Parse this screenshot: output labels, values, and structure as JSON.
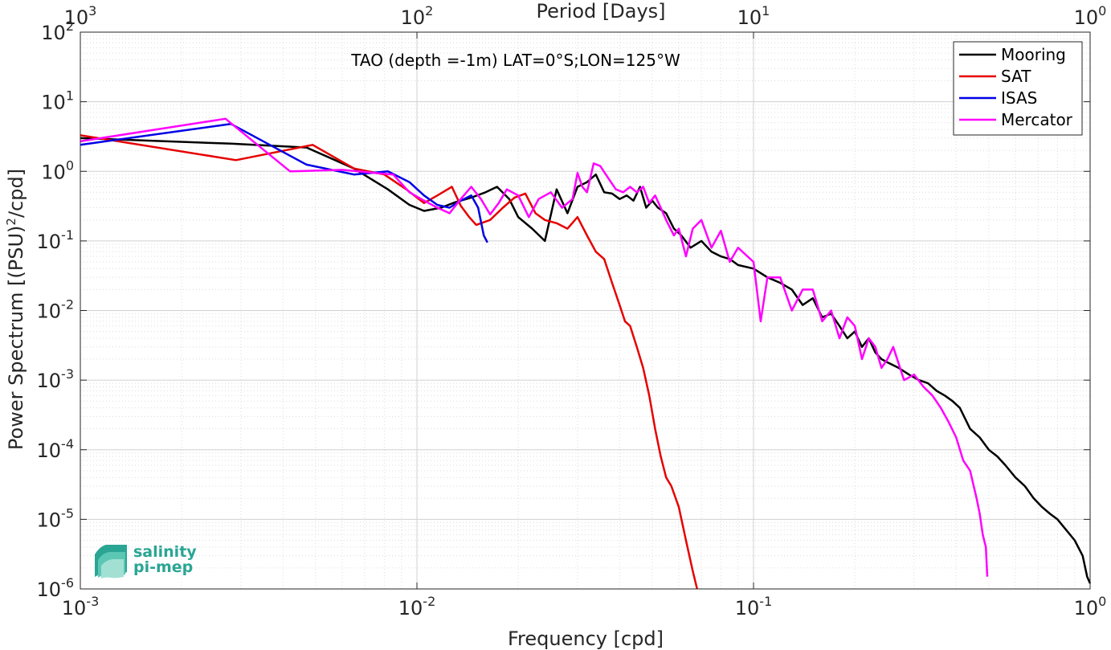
{
  "chart_data": {
    "type": "line",
    "title": "",
    "annotation": "TAO (depth =-1m) LAT=0°S;LON=125°W",
    "xlabel": "Frequency [cpd]",
    "ylabel": "Power Spectrum [(PSU)",
    "ylabel_sup": "2",
    "ylabel_end": "/cpd]",
    "top_xlabel": "Period [Days]",
    "xscale": "log",
    "yscale": "log",
    "xlim": [
      0.001,
      1
    ],
    "ylim": [
      1e-06,
      100
    ],
    "grid": true,
    "legend_position": "top-right",
    "x_ticks": [
      {
        "base": "10",
        "exp": "-3"
      },
      {
        "base": "10",
        "exp": "-2"
      },
      {
        "base": "10",
        "exp": "-1"
      },
      {
        "base": "10",
        "exp": "0"
      }
    ],
    "y_ticks": [
      {
        "base": "10",
        "exp": "-6"
      },
      {
        "base": "10",
        "exp": "-5"
      },
      {
        "base": "10",
        "exp": "-4"
      },
      {
        "base": "10",
        "exp": "-3"
      },
      {
        "base": "10",
        "exp": "-2"
      },
      {
        "base": "10",
        "exp": "-1"
      },
      {
        "base": "10",
        "exp": "0"
      },
      {
        "base": "10",
        "exp": "1"
      },
      {
        "base": "10",
        "exp": "2"
      }
    ],
    "top_ticks": [
      {
        "base": "10",
        "exp": "3"
      },
      {
        "base": "10",
        "exp": "2"
      },
      {
        "base": "10",
        "exp": "1"
      },
      {
        "base": "10",
        "exp": "0"
      }
    ],
    "series": [
      {
        "name": "Mooring",
        "color": "#000000",
        "points": [
          [
            0.001,
            3.0
          ],
          [
            0.0028,
            2.5
          ],
          [
            0.0047,
            2.2
          ],
          [
            0.0065,
            1.1
          ],
          [
            0.0082,
            0.55
          ],
          [
            0.0095,
            0.33
          ],
          [
            0.0105,
            0.27
          ],
          [
            0.0118,
            0.3
          ],
          [
            0.013,
            0.36
          ],
          [
            0.0145,
            0.42
          ],
          [
            0.016,
            0.5
          ],
          [
            0.0173,
            0.6
          ],
          [
            0.0188,
            0.4
          ],
          [
            0.02,
            0.22
          ],
          [
            0.022,
            0.15
          ],
          [
            0.024,
            0.1
          ],
          [
            0.026,
            0.55
          ],
          [
            0.028,
            0.25
          ],
          [
            0.03,
            0.6
          ],
          [
            0.032,
            0.7
          ],
          [
            0.034,
            0.9
          ],
          [
            0.036,
            0.5
          ],
          [
            0.038,
            0.48
          ],
          [
            0.04,
            0.4
          ],
          [
            0.042,
            0.45
          ],
          [
            0.044,
            0.38
          ],
          [
            0.046,
            0.6
          ],
          [
            0.048,
            0.3
          ],
          [
            0.05,
            0.38
          ],
          [
            0.052,
            0.3
          ],
          [
            0.055,
            0.25
          ],
          [
            0.058,
            0.15
          ],
          [
            0.061,
            0.12
          ],
          [
            0.065,
            0.08
          ],
          [
            0.07,
            0.1
          ],
          [
            0.075,
            0.07
          ],
          [
            0.08,
            0.06
          ],
          [
            0.085,
            0.055
          ],
          [
            0.09,
            0.045
          ],
          [
            0.1,
            0.04
          ],
          [
            0.11,
            0.03
          ],
          [
            0.12,
            0.025
          ],
          [
            0.13,
            0.02
          ],
          [
            0.14,
            0.012
          ],
          [
            0.15,
            0.015
          ],
          [
            0.16,
            0.008
          ],
          [
            0.17,
            0.009
          ],
          [
            0.18,
            0.006
          ],
          [
            0.19,
            0.004
          ],
          [
            0.2,
            0.005
          ],
          [
            0.21,
            0.003
          ],
          [
            0.22,
            0.004
          ],
          [
            0.23,
            0.0025
          ],
          [
            0.24,
            0.002
          ],
          [
            0.25,
            0.0018
          ],
          [
            0.27,
            0.0015
          ],
          [
            0.29,
            0.0012
          ],
          [
            0.31,
            0.001
          ],
          [
            0.33,
            0.0009
          ],
          [
            0.35,
            0.0007
          ],
          [
            0.37,
            0.0006
          ],
          [
            0.39,
            0.0005
          ],
          [
            0.41,
            0.0004
          ],
          [
            0.44,
            0.0002
          ],
          [
            0.47,
            0.00015
          ],
          [
            0.5,
            0.0001
          ],
          [
            0.53,
            8e-05
          ],
          [
            0.56,
            6e-05
          ],
          [
            0.6,
            4e-05
          ],
          [
            0.64,
            3e-05
          ],
          [
            0.68,
            2e-05
          ],
          [
            0.72,
            1.5e-05
          ],
          [
            0.76,
            1.2e-05
          ],
          [
            0.8,
            1e-05
          ],
          [
            0.85,
            7e-06
          ],
          [
            0.9,
            5e-06
          ],
          [
            0.95,
            3e-06
          ],
          [
            0.98,
            1.5e-06
          ],
          [
            1.0,
            1.2e-06
          ]
        ]
      },
      {
        "name": "SAT",
        "color": "#e60000",
        "points": [
          [
            0.001,
            3.3
          ],
          [
            0.0029,
            1.45
          ],
          [
            0.0049,
            2.4
          ],
          [
            0.0065,
            1.1
          ],
          [
            0.008,
            0.9
          ],
          [
            0.0093,
            0.55
          ],
          [
            0.0105,
            0.35
          ],
          [
            0.0115,
            0.45
          ],
          [
            0.0127,
            0.6
          ],
          [
            0.0135,
            0.32
          ],
          [
            0.0143,
            0.22
          ],
          [
            0.015,
            0.17
          ],
          [
            0.0165,
            0.2
          ],
          [
            0.018,
            0.3
          ],
          [
            0.0195,
            0.42
          ],
          [
            0.021,
            0.48
          ],
          [
            0.0225,
            0.25
          ],
          [
            0.024,
            0.2
          ],
          [
            0.026,
            0.18
          ],
          [
            0.028,
            0.15
          ],
          [
            0.03,
            0.22
          ],
          [
            0.032,
            0.12
          ],
          [
            0.034,
            0.07
          ],
          [
            0.036,
            0.055
          ],
          [
            0.038,
            0.025
          ],
          [
            0.04,
            0.012
          ],
          [
            0.0415,
            0.007
          ],
          [
            0.043,
            0.006
          ],
          [
            0.045,
            0.003
          ],
          [
            0.047,
            0.0015
          ],
          [
            0.049,
            0.0006
          ],
          [
            0.051,
            0.0002
          ],
          [
            0.053,
            8e-05
          ],
          [
            0.055,
            4e-05
          ],
          [
            0.057,
            3e-05
          ],
          [
            0.06,
            1.5e-05
          ],
          [
            0.063,
            5e-06
          ],
          [
            0.066,
            1.8e-06
          ],
          [
            0.068,
            1e-06
          ]
        ]
      },
      {
        "name": "ISAS",
        "color": "#0000e6",
        "points": [
          [
            0.001,
            2.4
          ],
          [
            0.0028,
            4.8
          ],
          [
            0.0047,
            1.25
          ],
          [
            0.0065,
            0.9
          ],
          [
            0.0082,
            1.0
          ],
          [
            0.0095,
            0.7
          ],
          [
            0.0105,
            0.45
          ],
          [
            0.0115,
            0.33
          ],
          [
            0.0125,
            0.3
          ],
          [
            0.0135,
            0.38
          ],
          [
            0.0145,
            0.45
          ],
          [
            0.0152,
            0.3
          ],
          [
            0.0158,
            0.12
          ],
          [
            0.0162,
            0.095
          ]
        ]
      },
      {
        "name": "Mercator",
        "color": "#ff00ff",
        "points": [
          [
            0.001,
            2.7
          ],
          [
            0.0027,
            5.7
          ],
          [
            0.0042,
            1.0
          ],
          [
            0.006,
            1.05
          ],
          [
            0.0075,
            0.95
          ],
          [
            0.0085,
            0.9
          ],
          [
            0.0095,
            0.5
          ],
          [
            0.0105,
            0.38
          ],
          [
            0.0115,
            0.3
          ],
          [
            0.0125,
            0.25
          ],
          [
            0.0135,
            0.4
          ],
          [
            0.0145,
            0.6
          ],
          [
            0.0155,
            0.4
          ],
          [
            0.0165,
            0.24
          ],
          [
            0.0175,
            0.35
          ],
          [
            0.0185,
            0.55
          ],
          [
            0.02,
            0.45
          ],
          [
            0.0215,
            0.22
          ],
          [
            0.023,
            0.4
          ],
          [
            0.025,
            0.5
          ],
          [
            0.027,
            0.3
          ],
          [
            0.029,
            0.4
          ],
          [
            0.03,
            0.95
          ],
          [
            0.031,
            0.6
          ],
          [
            0.032,
            0.5
          ],
          [
            0.0335,
            1.3
          ],
          [
            0.035,
            1.2
          ],
          [
            0.037,
            0.8
          ],
          [
            0.039,
            0.55
          ],
          [
            0.041,
            0.5
          ],
          [
            0.043,
            0.6
          ],
          [
            0.045,
            0.5
          ],
          [
            0.047,
            0.6
          ],
          [
            0.049,
            0.35
          ],
          [
            0.051,
            0.45
          ],
          [
            0.053,
            0.3
          ],
          [
            0.055,
            0.2
          ],
          [
            0.058,
            0.12
          ],
          [
            0.06,
            0.15
          ],
          [
            0.063,
            0.06
          ],
          [
            0.066,
            0.15
          ],
          [
            0.07,
            0.2
          ],
          [
            0.075,
            0.08
          ],
          [
            0.08,
            0.14
          ],
          [
            0.085,
            0.05
          ],
          [
            0.09,
            0.08
          ],
          [
            0.1,
            0.05
          ],
          [
            0.105,
            0.007
          ],
          [
            0.11,
            0.03
          ],
          [
            0.12,
            0.03
          ],
          [
            0.13,
            0.01
          ],
          [
            0.14,
            0.02
          ],
          [
            0.15,
            0.02
          ],
          [
            0.16,
            0.007
          ],
          [
            0.17,
            0.01
          ],
          [
            0.18,
            0.004
          ],
          [
            0.19,
            0.008
          ],
          [
            0.2,
            0.006
          ],
          [
            0.21,
            0.002
          ],
          [
            0.22,
            0.004
          ],
          [
            0.23,
            0.003
          ],
          [
            0.24,
            0.0015
          ],
          [
            0.25,
            0.002
          ],
          [
            0.26,
            0.003
          ],
          [
            0.28,
            0.001
          ],
          [
            0.3,
            0.0012
          ],
          [
            0.32,
            0.0008
          ],
          [
            0.34,
            0.0006
          ],
          [
            0.36,
            0.0004
          ],
          [
            0.38,
            0.00025
          ],
          [
            0.4,
            0.00015
          ],
          [
            0.42,
            7e-05
          ],
          [
            0.44,
            5e-05
          ],
          [
            0.46,
            2e-05
          ],
          [
            0.47,
            1.2e-05
          ],
          [
            0.48,
            6e-06
          ],
          [
            0.49,
            4e-06
          ],
          [
            0.495,
            1.5e-06
          ]
        ]
      }
    ]
  },
  "logo": {
    "line1": "salinity",
    "line2": "pi-mep"
  }
}
